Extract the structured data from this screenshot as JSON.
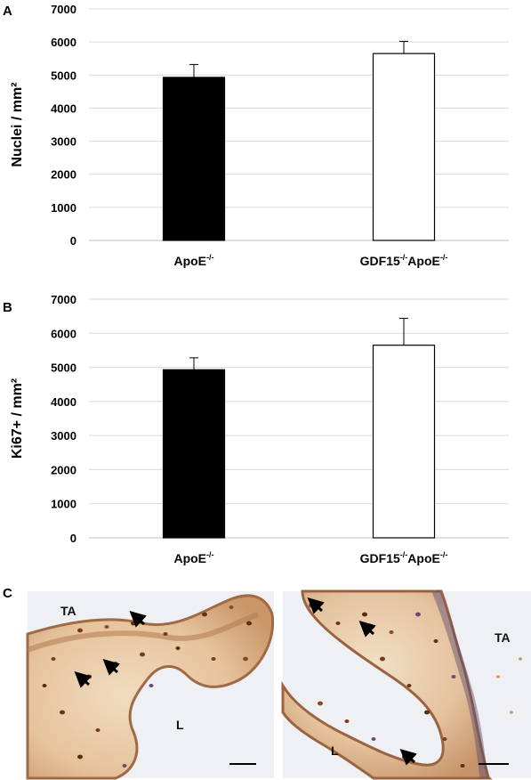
{
  "panels": {
    "a": {
      "letter": "A"
    },
    "b": {
      "letter": "B"
    },
    "c": {
      "letter": "C"
    }
  },
  "chart_data": [
    {
      "type": "bar",
      "ylabel": "Nuclei / mm²",
      "ylim": [
        0,
        7000
      ],
      "yticks": [
        0,
        1000,
        2000,
        3000,
        4000,
        5000,
        6000,
        7000
      ],
      "grid": true,
      "categories": [
        {
          "base": "ApoE",
          "sup": "-/-"
        },
        {
          "base": "GDF15",
          "sup": "-/-",
          "base2": "ApoE",
          "sup2": "-/-"
        }
      ],
      "values": [
        4930,
        5650
      ],
      "errors": [
        390,
        370
      ],
      "fills": [
        "#000000",
        "#ffffff"
      ]
    },
    {
      "type": "bar",
      "ylabel": "Ki67+ / mm²",
      "ylim": [
        0,
        7000
      ],
      "yticks": [
        0,
        1000,
        2000,
        3000,
        4000,
        5000,
        6000,
        7000
      ],
      "grid": true,
      "categories": [
        {
          "base": "ApoE",
          "sup": "-/-"
        },
        {
          "base": "GDF15",
          "sup": "-/-",
          "base2": "ApoE",
          "sup2": "-/-"
        }
      ],
      "values": [
        4930,
        5650
      ],
      "errors": [
        350,
        790
      ],
      "fills": [
        "#000000",
        "#ffffff"
      ]
    }
  ],
  "micrographs": {
    "left": {
      "labels": [
        "TA",
        "L"
      ]
    },
    "right": {
      "labels": [
        "TA",
        "L"
      ]
    }
  }
}
